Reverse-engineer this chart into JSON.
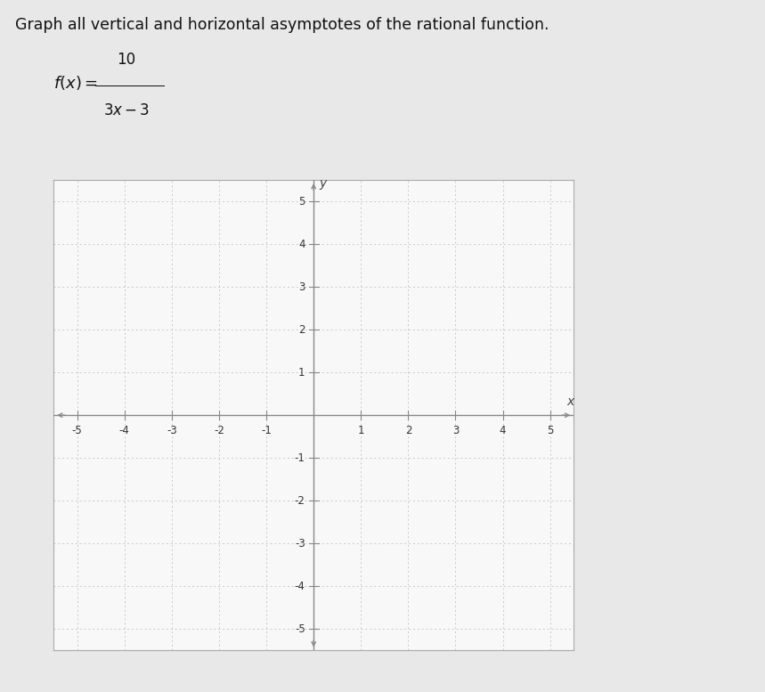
{
  "title": "Graph all vertical and horizontal asymptotes of the rational function.",
  "xlim": [
    -5.5,
    5.5
  ],
  "ylim": [
    -5.5,
    5.5
  ],
  "xticks": [
    -5,
    -4,
    -3,
    -2,
    -1,
    1,
    2,
    3,
    4,
    5
  ],
  "yticks": [
    -5,
    -4,
    -3,
    -2,
    -1,
    1,
    2,
    3,
    4,
    5
  ],
  "grid_color": "#c8c8c8",
  "axis_color": "#888888",
  "plot_bg_color": "#f8f8f8",
  "border_color": "#aaaaaa",
  "tick_fontsize": 8.5,
  "title_fontsize": 12.5,
  "fig_bg_color": "#e8e8e8",
  "arrow_color": "#888888"
}
